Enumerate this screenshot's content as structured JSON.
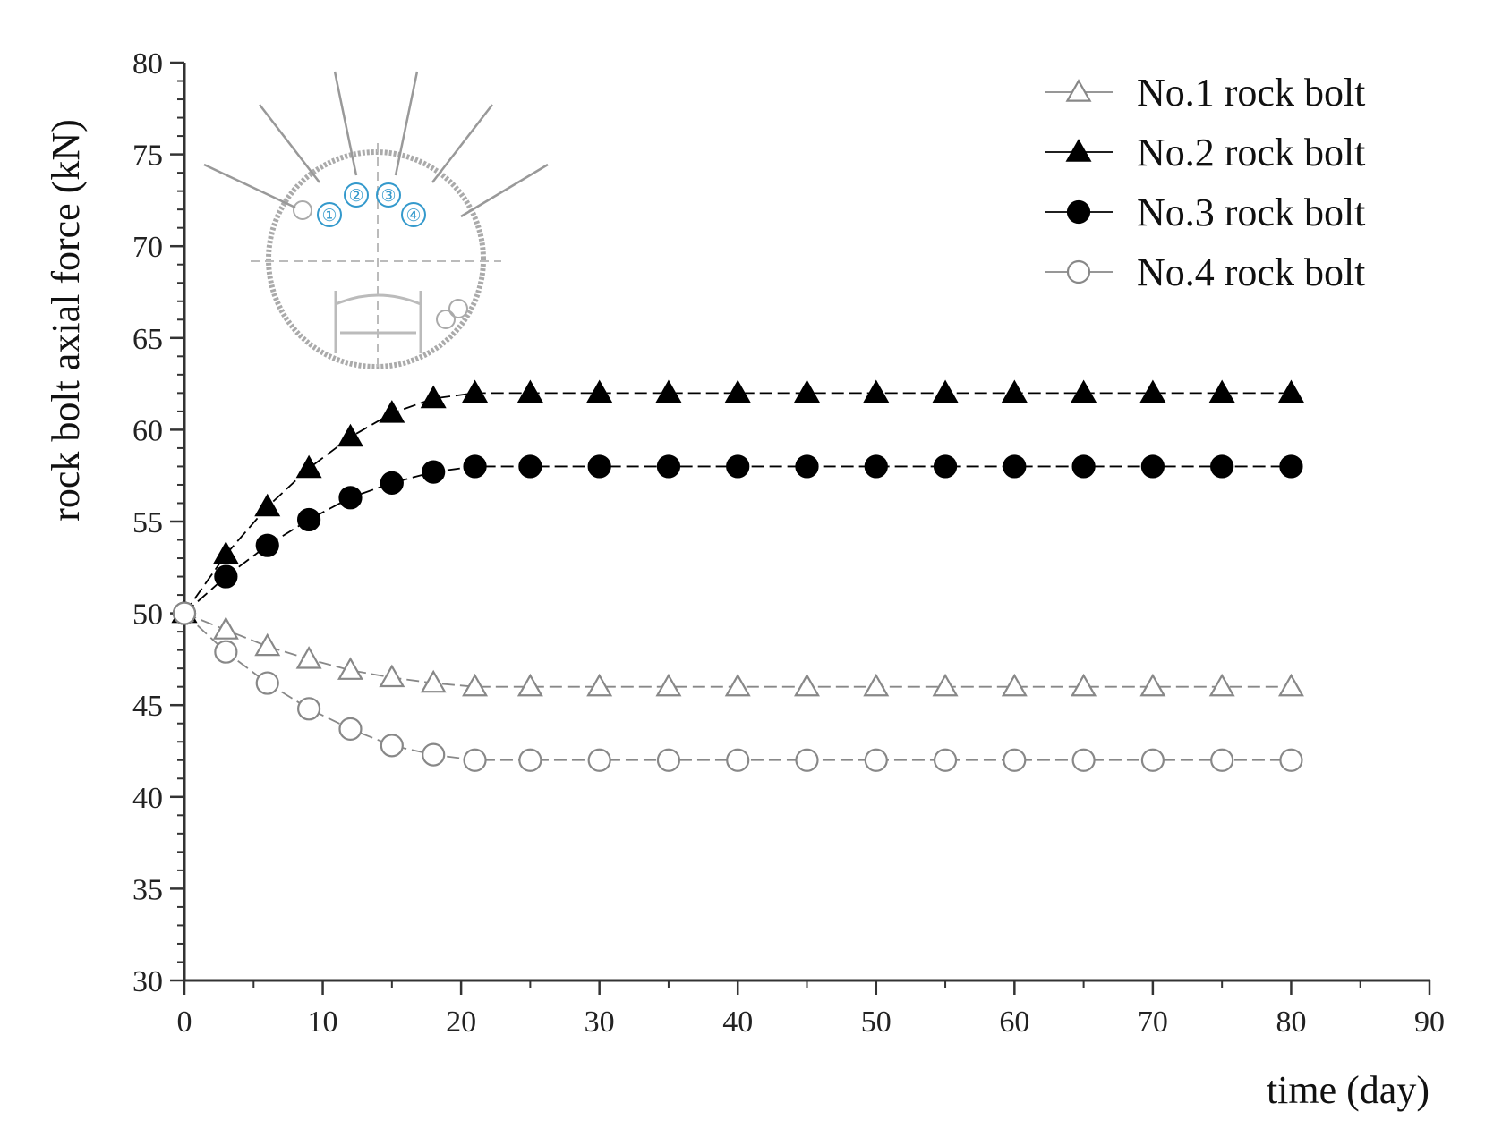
{
  "chart_data": {
    "type": "line",
    "title": "",
    "xlabel": "time (day)",
    "ylabel": "rock bolt axial force (kN)",
    "xlim": [
      0,
      90
    ],
    "ylim": [
      30,
      80
    ],
    "x_ticks": [
      0,
      10,
      20,
      30,
      40,
      50,
      60,
      70,
      80,
      90
    ],
    "y_ticks": [
      30,
      35,
      40,
      45,
      50,
      55,
      60,
      65,
      70,
      75,
      80
    ],
    "grid": false,
    "legend_position": "top-right",
    "x": [
      0,
      3,
      6,
      9,
      12,
      15,
      18,
      21,
      25,
      30,
      35,
      40,
      45,
      50,
      55,
      60,
      65,
      70,
      75,
      80
    ],
    "series": [
      {
        "name": "No.1 rock bolt",
        "marker": "open-triangle",
        "color": "#888888",
        "values": [
          50,
          49.1,
          48.2,
          47.5,
          46.9,
          46.5,
          46.2,
          46.0,
          46.0,
          46.0,
          46.0,
          46.0,
          46.0,
          46.0,
          46.0,
          46.0,
          46.0,
          46.0,
          46.0,
          46.0
        ]
      },
      {
        "name": "No.2 rock bolt",
        "marker": "filled-triangle",
        "color": "#000000",
        "values": [
          50,
          53.2,
          55.8,
          57.9,
          59.6,
          60.9,
          61.7,
          62.0,
          62.0,
          62.0,
          62.0,
          62.0,
          62.0,
          62.0,
          62.0,
          62.0,
          62.0,
          62.0,
          62.0,
          62.0
        ]
      },
      {
        "name": "No.3 rock bolt",
        "marker": "filled-circle",
        "color": "#000000",
        "values": [
          50,
          52.0,
          53.7,
          55.1,
          56.3,
          57.1,
          57.7,
          58.0,
          58.0,
          58.0,
          58.0,
          58.0,
          58.0,
          58.0,
          58.0,
          58.0,
          58.0,
          58.0,
          58.0,
          58.0
        ]
      },
      {
        "name": "No.4 rock bolt",
        "marker": "open-circle",
        "color": "#888888",
        "values": [
          50,
          47.9,
          46.2,
          44.8,
          43.7,
          42.8,
          42.3,
          42.0,
          42.0,
          42.0,
          42.0,
          42.0,
          42.0,
          42.0,
          42.0,
          42.0,
          42.0,
          42.0,
          42.0,
          42.0
        ]
      }
    ],
    "inset": {
      "description_labels": [
        "①",
        "②",
        "③",
        "④"
      ],
      "accent_color": "#3399cc"
    }
  }
}
